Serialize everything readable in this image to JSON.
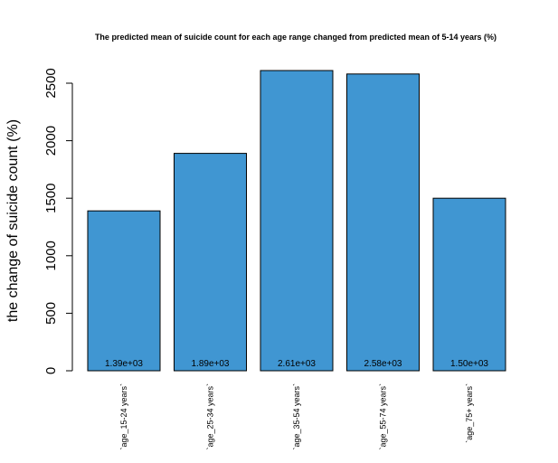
{
  "chart_data": {
    "type": "bar",
    "title": "The predicted mean of suicide count for each age range changed from predicted mean of 5-14 years (%)",
    "xlabel": "",
    "ylabel": "the change of suicide count (%)",
    "categories": [
      "`age_15-24 years`",
      "`age_25-34 years`",
      "`age_35-54 years`",
      "`age_55-74 years`",
      "`age_75+ years`"
    ],
    "values": [
      1390,
      1890,
      2610,
      2580,
      1500
    ],
    "data_labels": [
      "1.39e+03",
      "1.89e+03",
      "2.61e+03",
      "2.58e+03",
      "1.50e+03"
    ],
    "y_ticks": [
      0,
      500,
      1000,
      1500,
      2000,
      2500
    ],
    "y_tick_labels": [
      "0",
      "500",
      "1000",
      "1500",
      "2000",
      "2500"
    ],
    "ylim": [
      0,
      2610
    ],
    "bar_color": "#4096d2",
    "grid": false,
    "legend": "none"
  }
}
